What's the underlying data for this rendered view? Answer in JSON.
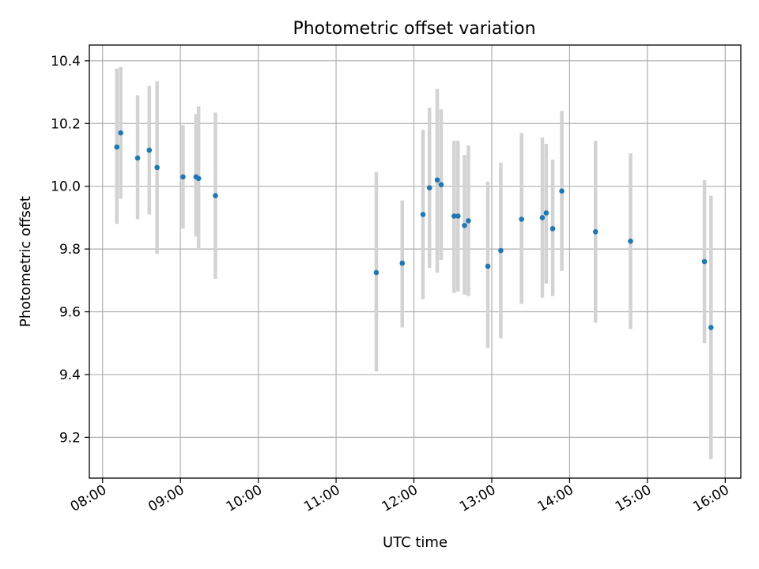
{
  "chart_data": {
    "type": "scatter",
    "title": "Photometric offset variation",
    "xlabel": "UTC time",
    "ylabel": "Photometric offset",
    "grid": true,
    "xlim_hours": [
      7.83,
      16.2
    ],
    "ylim": [
      9.07,
      10.45
    ],
    "x_ticks": [
      {
        "hour": 8,
        "label": "08:00"
      },
      {
        "hour": 9,
        "label": "09:00"
      },
      {
        "hour": 10,
        "label": "10:00"
      },
      {
        "hour": 11,
        "label": "11:00"
      },
      {
        "hour": 12,
        "label": "12:00"
      },
      {
        "hour": 13,
        "label": "13:00"
      },
      {
        "hour": 14,
        "label": "14:00"
      },
      {
        "hour": 15,
        "label": "15:00"
      },
      {
        "hour": 16,
        "label": "16:00"
      }
    ],
    "y_ticks": [
      {
        "value": 9.2,
        "label": "9.2"
      },
      {
        "value": 9.4,
        "label": "9.4"
      },
      {
        "value": 9.6,
        "label": "9.6"
      },
      {
        "value": 9.8,
        "label": "9.8"
      },
      {
        "value": 10.0,
        "label": "10.0"
      },
      {
        "value": 10.2,
        "label": "10.2"
      },
      {
        "value": 10.4,
        "label": "10.4"
      }
    ],
    "points": [
      {
        "time": "08:11",
        "y": 10.125,
        "lo": 9.88,
        "hi": 10.375
      },
      {
        "time": "08:14",
        "y": 10.17,
        "lo": 9.96,
        "hi": 10.38
      },
      {
        "time": "08:27",
        "y": 10.09,
        "lo": 9.895,
        "hi": 10.29
      },
      {
        "time": "08:36",
        "y": 10.115,
        "lo": 9.91,
        "hi": 10.32
      },
      {
        "time": "08:42",
        "y": 10.06,
        "lo": 9.785,
        "hi": 10.335
      },
      {
        "time": "09:02",
        "y": 10.03,
        "lo": 9.865,
        "hi": 10.195
      },
      {
        "time": "09:12",
        "y": 10.03,
        "lo": 9.84,
        "hi": 10.23
      },
      {
        "time": "09:14",
        "y": 10.025,
        "lo": 9.8,
        "hi": 10.255
      },
      {
        "time": "09:27",
        "y": 9.97,
        "lo": 9.705,
        "hi": 10.235
      },
      {
        "time": "11:31",
        "y": 9.725,
        "lo": 9.41,
        "hi": 10.045
      },
      {
        "time": "11:51",
        "y": 9.755,
        "lo": 9.55,
        "hi": 9.955
      },
      {
        "time": "12:07",
        "y": 9.91,
        "lo": 9.64,
        "hi": 10.18
      },
      {
        "time": "12:12",
        "y": 9.995,
        "lo": 9.74,
        "hi": 10.25
      },
      {
        "time": "12:18",
        "y": 10.02,
        "lo": 9.725,
        "hi": 10.31
      },
      {
        "time": "12:21",
        "y": 10.005,
        "lo": 9.765,
        "hi": 10.245
      },
      {
        "time": "12:31",
        "y": 9.905,
        "lo": 9.66,
        "hi": 10.145
      },
      {
        "time": "12:34",
        "y": 9.905,
        "lo": 9.665,
        "hi": 10.145
      },
      {
        "time": "12:39",
        "y": 9.875,
        "lo": 9.655,
        "hi": 10.1
      },
      {
        "time": "12:42",
        "y": 9.89,
        "lo": 9.65,
        "hi": 10.13
      },
      {
        "time": "12:57",
        "y": 9.745,
        "lo": 9.485,
        "hi": 10.015
      },
      {
        "time": "13:07",
        "y": 9.795,
        "lo": 9.515,
        "hi": 10.075
      },
      {
        "time": "13:23",
        "y": 9.895,
        "lo": 9.625,
        "hi": 10.17
      },
      {
        "time": "13:39",
        "y": 9.9,
        "lo": 9.645,
        "hi": 10.155
      },
      {
        "time": "13:42",
        "y": 9.915,
        "lo": 9.69,
        "hi": 10.135
      },
      {
        "time": "13:47",
        "y": 9.865,
        "lo": 9.65,
        "hi": 10.085
      },
      {
        "time": "13:54",
        "y": 9.985,
        "lo": 9.73,
        "hi": 10.24
      },
      {
        "time": "14:20",
        "y": 9.855,
        "lo": 9.565,
        "hi": 10.145
      },
      {
        "time": "14:47",
        "y": 9.825,
        "lo": 9.545,
        "hi": 10.105
      },
      {
        "time": "15:44",
        "y": 9.76,
        "lo": 9.5,
        "hi": 10.02
      },
      {
        "time": "15:49",
        "y": 9.55,
        "lo": 9.13,
        "hi": 9.97
      }
    ]
  }
}
